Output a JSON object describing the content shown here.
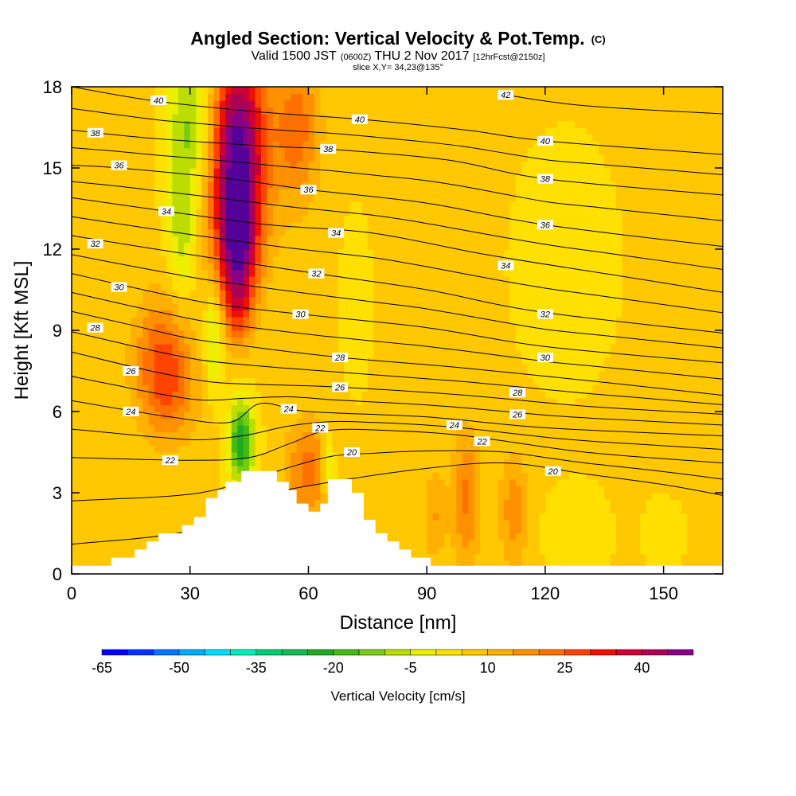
{
  "header": {
    "title": "Angled Section: Vertical Velocity & Pot.Temp.",
    "title_unit": "(C)",
    "valid_prefix": "Valid 1500 JST",
    "valid_utc": "(0600Z)",
    "valid_date": "THU 2 Nov 2017",
    "valid_fcst": "[12hrFcst@2150z]",
    "slice": "slice X,Y= 34,23@135°"
  },
  "chart_data": {
    "type": "heatmap",
    "xlabel": "Distance [nm]",
    "ylabel": "Height [Kft MSL]",
    "xlim": [
      0,
      165
    ],
    "ylim": [
      0,
      18
    ],
    "x_ticks": [
      0,
      30,
      60,
      90,
      120,
      150
    ],
    "y_ticks": [
      0,
      3,
      6,
      9,
      12,
      15,
      18
    ],
    "colorbar": {
      "label": "Vertical Velocity [cm/s]",
      "tick_labels": [
        "-65",
        "-50",
        "-35",
        "-20",
        "-5",
        "10",
        "25",
        "40"
      ],
      "tick_values": [
        -65,
        -50,
        -35,
        -20,
        -5,
        10,
        25,
        40
      ],
      "bin_edges": [
        -65,
        -60,
        -55,
        -50,
        -45,
        -40,
        -35,
        -30,
        -25,
        -20,
        -15,
        -10,
        -5,
        0,
        5,
        10,
        15,
        20,
        25,
        30,
        35,
        40,
        45,
        50
      ],
      "colors": [
        "#0000ff",
        "#0033ff",
        "#0077ff",
        "#00aaff",
        "#00ddff",
        "#00eebb",
        "#00cc77",
        "#11bb55",
        "#22aa22",
        "#44bb11",
        "#77cc11",
        "#bbdd00",
        "#eeee00",
        "#ffe000",
        "#ffc800",
        "#ffb000",
        "#ff9000",
        "#ff7000",
        "#ff4400",
        "#ee1100",
        "#cc0033",
        "#aa0055",
        "#880088",
        "#550099"
      ]
    },
    "theta_contours": [
      {
        "label": "20",
        "points": [
          [
            0,
            1.1
          ],
          [
            30,
            1.6
          ],
          [
            50,
            2.9
          ],
          [
            66,
            3.4
          ],
          [
            90,
            3.9
          ],
          [
            110,
            4.1
          ],
          [
            130,
            3.7
          ],
          [
            150,
            3.3
          ],
          [
            165,
            2.9
          ]
        ]
      },
      {
        "label": "22",
        "points": [
          [
            0,
            4.3
          ],
          [
            30,
            4.2
          ],
          [
            45,
            4.3
          ],
          [
            55,
            4.8
          ],
          [
            65,
            5.3
          ],
          [
            80,
            5.3
          ],
          [
            100,
            5.1
          ],
          [
            130,
            4.5
          ],
          [
            165,
            4.1
          ]
        ]
      },
      {
        "label": "24",
        "points": [
          [
            0,
            6.4
          ],
          [
            25,
            5.8
          ],
          [
            40,
            5.6
          ],
          [
            48,
            6.3
          ],
          [
            60,
            6.0
          ],
          [
            90,
            5.8
          ],
          [
            120,
            5.4
          ],
          [
            165,
            5.1
          ]
        ]
      },
      {
        "label": "26",
        "points": [
          [
            0,
            8.2
          ],
          [
            20,
            7.5
          ],
          [
            35,
            7.1
          ],
          [
            48,
            7.0
          ],
          [
            68,
            6.9
          ],
          [
            100,
            6.6
          ],
          [
            130,
            6.2
          ],
          [
            165,
            5.9
          ]
        ]
      },
      {
        "label": "28",
        "points": [
          [
            0,
            9.7
          ],
          [
            15,
            9.2
          ],
          [
            30,
            8.7
          ],
          [
            45,
            8.4
          ],
          [
            68,
            8.0
          ],
          [
            100,
            7.6
          ],
          [
            140,
            7.0
          ],
          [
            165,
            6.6
          ]
        ]
      },
      {
        "label": "30",
        "points": [
          [
            0,
            11.1
          ],
          [
            15,
            10.6
          ],
          [
            35,
            10.0
          ],
          [
            58,
            9.6
          ],
          [
            90,
            9.1
          ],
          [
            120,
            8.4
          ],
          [
            165,
            7.8
          ]
        ]
      },
      {
        "label": "32",
        "points": [
          [
            0,
            12.5
          ],
          [
            30,
            11.8
          ],
          [
            62,
            11.1
          ],
          [
            90,
            10.5
          ],
          [
            118,
            9.7
          ],
          [
            165,
            8.9
          ]
        ]
      },
      {
        "label": "34",
        "points": [
          [
            0,
            13.9
          ],
          [
            24,
            13.4
          ],
          [
            50,
            12.9
          ],
          [
            76,
            12.6
          ],
          [
            105,
            11.8
          ],
          [
            135,
            11.1
          ],
          [
            165,
            10.4
          ]
        ]
      },
      {
        "label": "36",
        "points": [
          [
            0,
            15.1
          ],
          [
            12,
            15.0
          ],
          [
            40,
            14.6
          ],
          [
            60,
            14.2
          ],
          [
            90,
            13.7
          ],
          [
            120,
            12.9
          ],
          [
            165,
            12.1
          ]
        ]
      },
      {
        "label": "38",
        "points": [
          [
            0,
            16.4
          ],
          [
            20,
            16.1
          ],
          [
            50,
            15.8
          ],
          [
            65,
            15.7
          ],
          [
            95,
            15.3
          ],
          [
            120,
            14.6
          ],
          [
            165,
            14.0
          ]
        ]
      },
      {
        "label": "40",
        "points": [
          [
            0,
            18.0
          ],
          [
            20,
            17.5
          ],
          [
            45,
            17.1
          ],
          [
            73,
            16.8
          ],
          [
            100,
            16.4
          ],
          [
            120,
            16.0
          ],
          [
            165,
            15.5
          ]
        ]
      },
      {
        "label": "42",
        "points": [
          [
            110,
            17.7
          ],
          [
            130,
            17.3
          ],
          [
            165,
            17.0
          ]
        ]
      }
    ],
    "contour_labels": [
      {
        "text": "40",
        "x": 22,
        "y": 17.5
      },
      {
        "text": "38",
        "x": 6,
        "y": 16.3
      },
      {
        "text": "36",
        "x": 12,
        "y": 15.1
      },
      {
        "text": "34",
        "x": 24,
        "y": 13.4
      },
      {
        "text": "32",
        "x": 6,
        "y": 12.2
      },
      {
        "text": "30",
        "x": 12,
        "y": 10.6
      },
      {
        "text": "28",
        "x": 6,
        "y": 9.1
      },
      {
        "text": "26",
        "x": 15,
        "y": 7.5
      },
      {
        "text": "24",
        "x": 15,
        "y": 6.0
      },
      {
        "text": "22",
        "x": 25,
        "y": 4.2
      },
      {
        "text": "42",
        "x": 110,
        "y": 17.7
      },
      {
        "text": "40",
        "x": 73,
        "y": 16.8
      },
      {
        "text": "38",
        "x": 65,
        "y": 15.7
      },
      {
        "text": "36",
        "x": 60,
        "y": 14.2
      },
      {
        "text": "34",
        "x": 67,
        "y": 12.6
      },
      {
        "text": "32",
        "x": 62,
        "y": 11.1
      },
      {
        "text": "30",
        "x": 58,
        "y": 9.6
      },
      {
        "text": "28",
        "x": 68,
        "y": 8.0
      },
      {
        "text": "26",
        "x": 68,
        "y": 6.9
      },
      {
        "text": "24",
        "x": 55,
        "y": 6.1
      },
      {
        "text": "22",
        "x": 63,
        "y": 5.4
      },
      {
        "text": "20",
        "x": 71,
        "y": 4.5
      },
      {
        "text": "40",
        "x": 120,
        "y": 16.0
      },
      {
        "text": "38",
        "x": 120,
        "y": 14.6
      },
      {
        "text": "36",
        "x": 120,
        "y": 12.9
      },
      {
        "text": "34",
        "x": 110,
        "y": 11.4
      },
      {
        "text": "32",
        "x": 120,
        "y": 9.6
      },
      {
        "text": "30",
        "x": 120,
        "y": 8.0
      },
      {
        "text": "28",
        "x": 113,
        "y": 6.7
      },
      {
        "text": "26",
        "x": 113,
        "y": 5.9
      },
      {
        "text": "24",
        "x": 97,
        "y": 5.5
      },
      {
        "text": "22",
        "x": 104,
        "y": 4.9
      },
      {
        "text": "20",
        "x": 122,
        "y": 3.8
      }
    ],
    "terrain": [
      [
        0,
        0.3
      ],
      [
        10,
        0.3
      ],
      [
        10,
        0.6
      ],
      [
        16,
        0.6
      ],
      [
        16,
        0.9
      ],
      [
        19,
        0.9
      ],
      [
        19,
        1.2
      ],
      [
        22,
        1.2
      ],
      [
        22,
        1.5
      ],
      [
        28,
        1.5
      ],
      [
        28,
        1.8
      ],
      [
        31,
        1.8
      ],
      [
        31,
        2.1
      ],
      [
        34,
        2.1
      ],
      [
        34,
        2.8
      ],
      [
        37,
        2.8
      ],
      [
        37,
        3.1
      ],
      [
        39,
        3.1
      ],
      [
        39,
        3.4
      ],
      [
        43,
        3.4
      ],
      [
        43,
        3.8
      ],
      [
        52,
        3.8
      ],
      [
        52,
        3.4
      ],
      [
        55,
        3.4
      ],
      [
        55,
        3.1
      ],
      [
        57,
        3.1
      ],
      [
        57,
        2.6
      ],
      [
        60,
        2.6
      ],
      [
        60,
        2.3
      ],
      [
        63,
        2.3
      ],
      [
        63,
        2.6
      ],
      [
        65,
        2.6
      ],
      [
        65,
        3.5
      ],
      [
        71,
        3.5
      ],
      [
        71,
        3.0
      ],
      [
        74,
        3.0
      ],
      [
        74,
        2.0
      ],
      [
        77,
        2.0
      ],
      [
        77,
        1.5
      ],
      [
        80,
        1.5
      ],
      [
        80,
        1.2
      ],
      [
        83,
        1.2
      ],
      [
        83,
        0.9
      ],
      [
        86,
        0.9
      ],
      [
        86,
        0.6
      ],
      [
        91,
        0.6
      ],
      [
        91,
        0.3
      ],
      [
        165,
        0.3
      ]
    ],
    "wind_cells": [
      {
        "x": 42,
        "y": 15.5,
        "sx": 5,
        "sy": 2.8,
        "w": 48
      },
      {
        "x": 42,
        "y": 12.0,
        "sx": 3.5,
        "sy": 1.5,
        "w": 28
      },
      {
        "x": 42,
        "y": 9.8,
        "sx": 2.5,
        "sy": 1.0,
        "w": 15
      },
      {
        "x": 57,
        "y": 16.5,
        "sx": 4,
        "sy": 2.0,
        "w": 17
      },
      {
        "x": 23,
        "y": 8.0,
        "sx": 5,
        "sy": 1.6,
        "w": 18
      },
      {
        "x": 25,
        "y": 6.5,
        "sx": 5,
        "sy": 1.3,
        "w": 9
      },
      {
        "x": 60,
        "y": 3.8,
        "sx": 4,
        "sy": 1.3,
        "w": 16
      },
      {
        "x": 100,
        "y": 2.8,
        "sx": 2.5,
        "sy": 1.8,
        "w": 15
      },
      {
        "x": 112,
        "y": 2.4,
        "sx": 2.5,
        "sy": 1.5,
        "w": 12
      },
      {
        "x": 92,
        "y": 2.2,
        "sx": 2,
        "sy": 1.2,
        "w": 9
      },
      {
        "x": 31,
        "y": 17.0,
        "sx": 4.5,
        "sy": 2.0,
        "w": -17
      },
      {
        "x": 28,
        "y": 13.0,
        "sx": 2.5,
        "sy": 2.0,
        "w": -14
      },
      {
        "x": 36,
        "y": 8.7,
        "sx": 1.6,
        "sy": 1.4,
        "w": -15
      },
      {
        "x": 43,
        "y": 4.9,
        "sx": 2.3,
        "sy": 1.1,
        "w": -30
      },
      {
        "x": 65,
        "y": 4.0,
        "sx": 1.2,
        "sy": 0.8,
        "w": -16
      },
      {
        "x": 72,
        "y": 10.0,
        "sx": 3,
        "sy": 2.5,
        "w": -3
      },
      {
        "x": 128,
        "y": 1.5,
        "sx": 6,
        "sy": 1.2,
        "w": -4
      },
      {
        "x": 150,
        "y": 1.5,
        "sx": 4,
        "sy": 1.0,
        "w": -3
      },
      {
        "x": 125,
        "y": 11.5,
        "sx": 10,
        "sy": 3.5,
        "w": -3
      }
    ],
    "wind_background": 6
  }
}
